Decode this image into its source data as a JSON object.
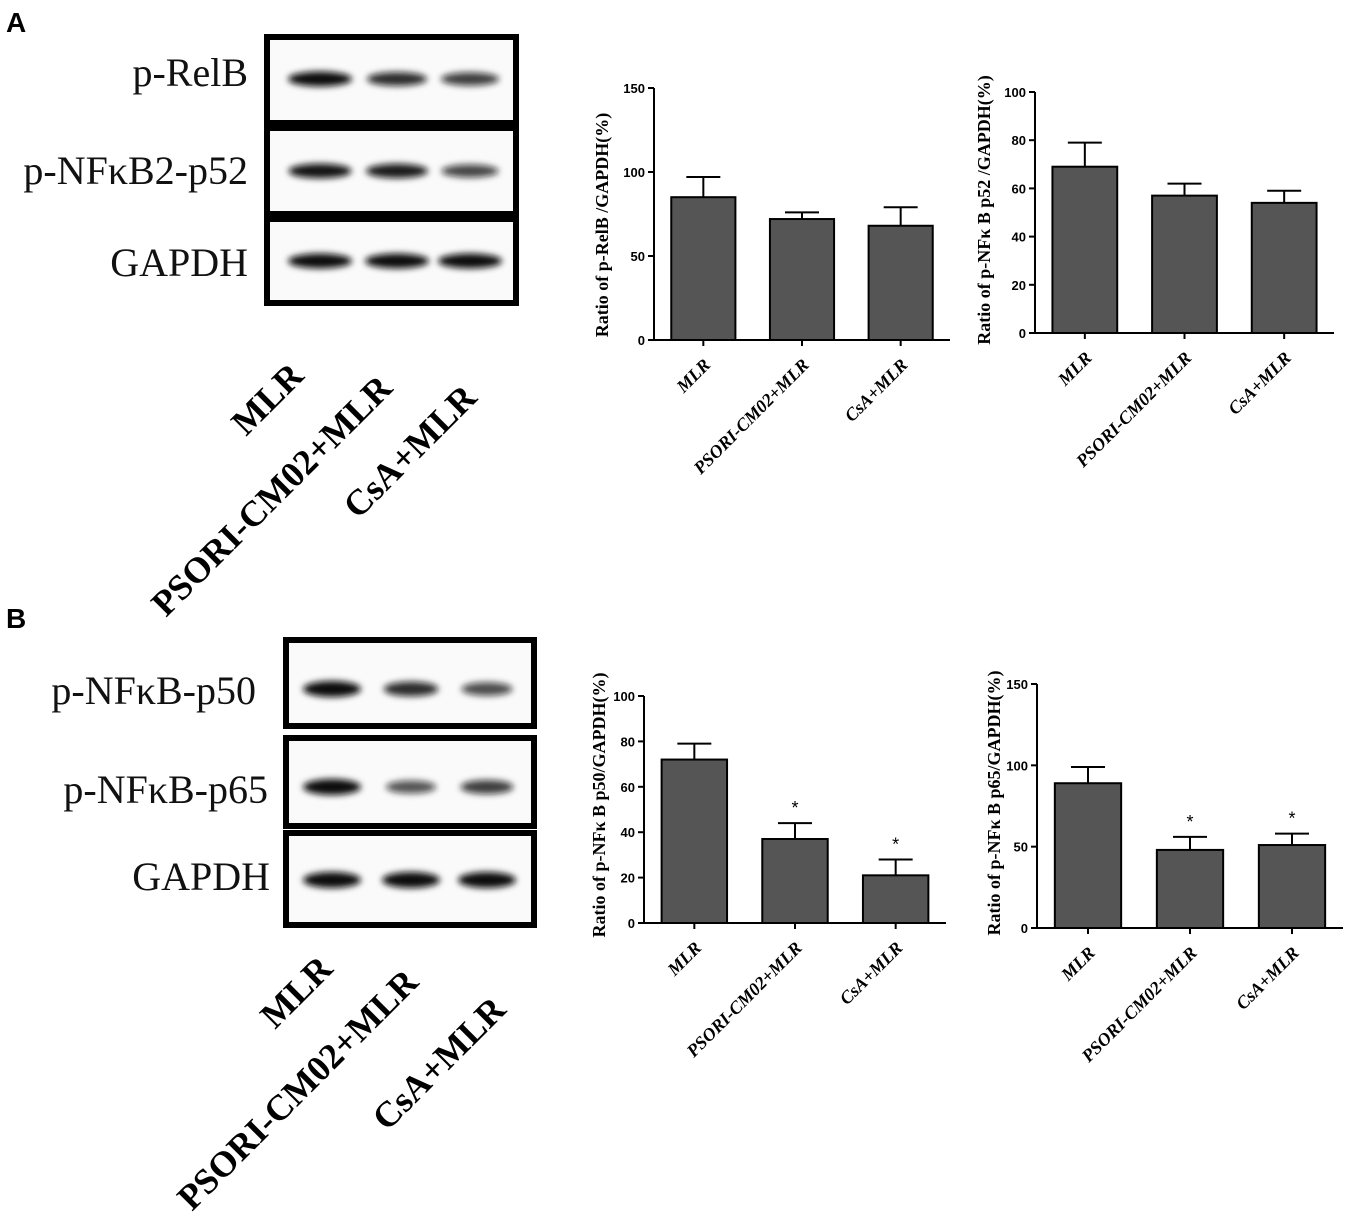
{
  "panels": [
    {
      "letter": "A",
      "blot": {
        "rows": [
          {
            "label": "p-RelB",
            "intensities": [
              1.0,
              0.8,
              0.7
            ]
          },
          {
            "label": "p-NFκB2-p52",
            "intensities": [
              0.95,
              0.9,
              0.65
            ]
          },
          {
            "label": "GAPDH",
            "intensities": [
              1.0,
              1.0,
              1.0
            ]
          }
        ],
        "lanes": [
          "MLR",
          "PSORI-CM02+MLR",
          "CsA+MLR"
        ]
      }
    },
    {
      "letter": "B",
      "blot": {
        "rows": [
          {
            "label": "p-NFκB-p50",
            "intensities": [
              1.0,
              0.8,
              0.6
            ]
          },
          {
            "label": "p-NFκB-p65",
            "intensities": [
              1.0,
              0.55,
              0.7
            ]
          },
          {
            "label": "GAPDH",
            "intensities": [
              1.0,
              1.0,
              1.0
            ]
          }
        ],
        "lanes": [
          "MLR",
          "PSORI-CM02+MLR",
          "CsA+MLR"
        ]
      }
    }
  ],
  "chart_data": [
    {
      "type": "bar",
      "categories": [
        "MLR",
        "PSORI-CM02+MLR",
        "CsA+MLR"
      ],
      "values": [
        85,
        72,
        68
      ],
      "errors": [
        12,
        4,
        11
      ],
      "significance": [
        "",
        "",
        ""
      ],
      "ylabel": "Ratio of p-RelB /GAPDH(%)",
      "ylim": [
        0,
        150
      ],
      "yticks": [
        0,
        50,
        100,
        150
      ],
      "bar_color": "#555555"
    },
    {
      "type": "bar",
      "categories": [
        "MLR",
        "PSORI-CM02+MLR",
        "CsA+MLR"
      ],
      "values": [
        69,
        57,
        54
      ],
      "errors": [
        10,
        5,
        5
      ],
      "significance": [
        "",
        "",
        ""
      ],
      "ylabel": "Ratio of p-NFκ B p52 /GAPDH(%)",
      "ylim": [
        0,
        100
      ],
      "yticks": [
        0,
        20,
        40,
        60,
        80,
        100
      ],
      "bar_color": "#555555"
    },
    {
      "type": "bar",
      "categories": [
        "MLR",
        "PSORI-CM02+MLR",
        "CsA+MLR"
      ],
      "values": [
        72,
        37,
        21
      ],
      "errors": [
        7,
        7,
        7
      ],
      "significance": [
        "",
        "*",
        "*"
      ],
      "ylabel": "Ratio of p-NFκ B p50/GAPDH(%)",
      "ylim": [
        0,
        100
      ],
      "yticks": [
        0,
        20,
        40,
        60,
        80,
        100
      ],
      "bar_color": "#555555"
    },
    {
      "type": "bar",
      "categories": [
        "MLR",
        "PSORI-CM02+MLR",
        "CsA+MLR"
      ],
      "values": [
        89,
        48,
        51
      ],
      "errors": [
        10,
        8,
        7
      ],
      "significance": [
        "",
        "*",
        "*"
      ],
      "ylabel": "Ratio of p-NFκ B p65/GAPDH(%)",
      "ylim": [
        0,
        150
      ],
      "yticks": [
        0,
        50,
        100,
        150
      ],
      "bar_color": "#555555"
    }
  ]
}
